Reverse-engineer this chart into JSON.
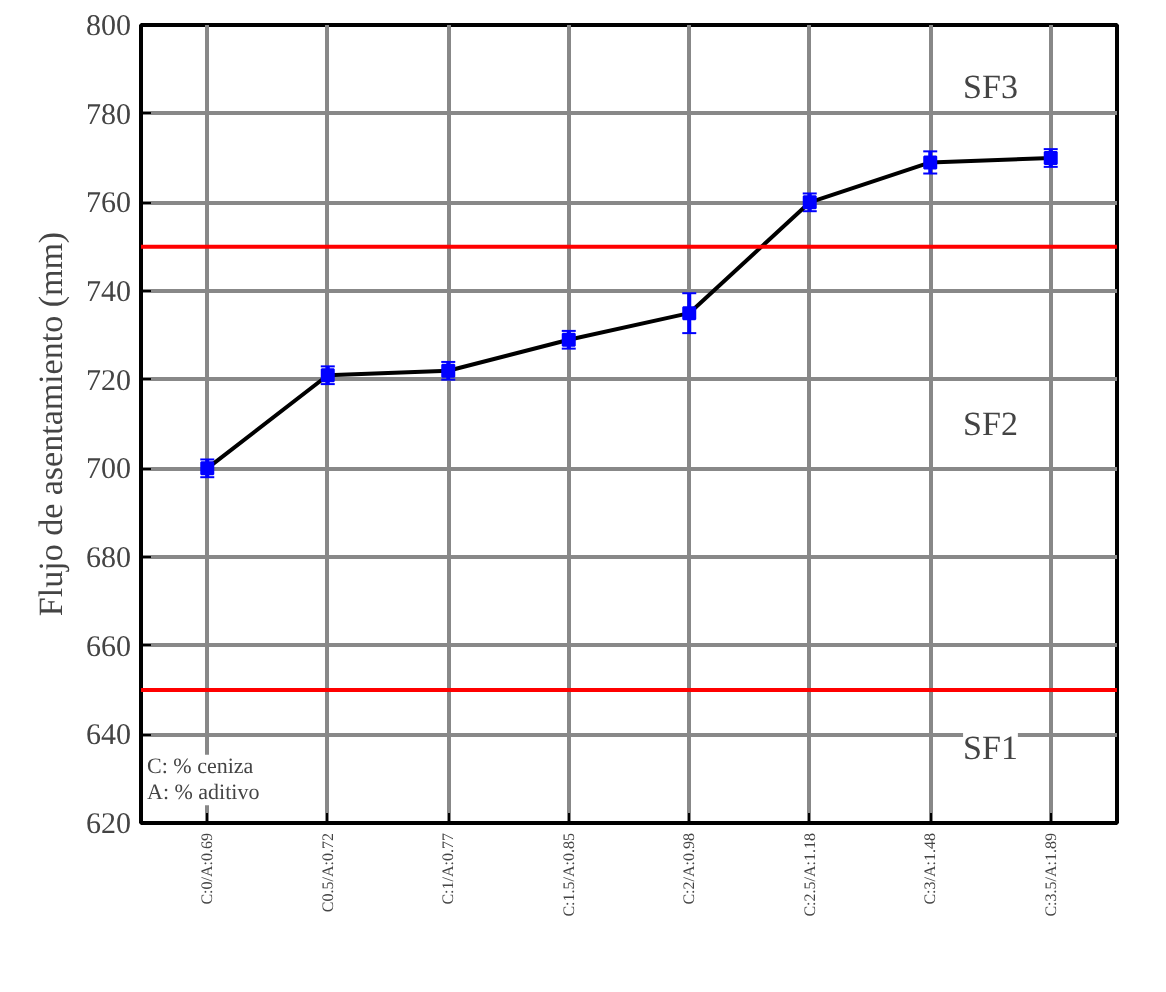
{
  "chart_data": {
    "type": "line",
    "ylabel": "Flujo de asentamiento (mm)",
    "categories": [
      "C:0/A:0.69",
      "C0.5/A:0.72",
      "C:1/A:0.77",
      "C:1.5/A:0.85",
      "C:2/A:0.98",
      "C:2.5/A:1.18",
      "C:3/A:1.48",
      "C:3.5/A:1.89"
    ],
    "series": [
      {
        "color": "#0000ff",
        "values": [
          700,
          721,
          722,
          729,
          735,
          760,
          769,
          770
        ],
        "errors": [
          2,
          2,
          2,
          2,
          4.5,
          2,
          2.5,
          2
        ]
      }
    ],
    "ylim": [
      620,
      800
    ],
    "yticks": [
      620,
      640,
      660,
      680,
      700,
      720,
      740,
      760,
      780,
      800
    ],
    "ref_lines": [
      {
        "axis": "y",
        "value": 750,
        "color": "#ff0000"
      },
      {
        "axis": "y",
        "value": 650,
        "color": "#ff0000"
      }
    ],
    "annotations": [
      "C: % ceniza\nA: % aditivo",
      {
        "text": "SF3",
        "y": 786
      },
      {
        "text": "SF2",
        "y": 710
      },
      {
        "text": "SF1",
        "y": 637
      }
    ],
    "grid": true,
    "marker": "square",
    "line_style": "solid"
  }
}
